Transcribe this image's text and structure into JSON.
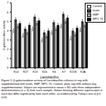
{
  "chart_data": {
    "type": "bar",
    "x_label": "Lactobacillus",
    "y_label": "β-galactosidase activity",
    "caption": "Figure 5: β-galactosidase activity of Lactobacillus cultures in soy milk supplemented with inulin, SMP, WPC 70; Control- plain soy milk without any supplementation. Values are represented in mean ± SD with three independent determinations (n = 3) from each sample. Values bearing different superscripts in each bar differ significantly from each other, as evidenced by Tukey's test at p ≤ 0.05.",
    "categories": [
      "K14",
      "R27",
      "K13",
      "K16",
      "K6",
      "K7",
      "K21K",
      "K2A"
    ],
    "series": [
      {
        "name": "Control",
        "color": "#ffffff",
        "values": [
          4.0,
          3.5,
          4.2,
          3.0,
          3.8,
          4.5,
          3.2,
          4.1
        ],
        "errors": [
          0.2,
          0.2,
          0.2,
          0.2,
          0.2,
          0.2,
          0.2,
          0.2
        ]
      },
      {
        "name": "Inulin",
        "color": "#404040",
        "values": [
          5.2,
          4.2,
          5.5,
          3.8,
          4.9,
          5.8,
          4.0,
          5.0
        ],
        "errors": [
          0.2,
          0.2,
          0.2,
          0.2,
          0.2,
          0.2,
          0.2,
          0.2
        ]
      },
      {
        "name": "SMP",
        "color": "#a6a6a6",
        "values": [
          4.5,
          3.8,
          4.8,
          3.4,
          4.2,
          5.0,
          3.6,
          4.6
        ],
        "errors": [
          0.2,
          0.2,
          0.2,
          0.2,
          0.2,
          0.2,
          0.2,
          0.2
        ]
      },
      {
        "name": "WPC 70",
        "color": "#000000",
        "values": [
          4.8,
          4.6,
          5.1,
          4.0,
          4.6,
          5.4,
          4.3,
          4.9
        ],
        "errors": [
          0.2,
          0.2,
          0.2,
          0.2,
          0.2,
          0.2,
          0.2,
          0.2
        ]
      }
    ],
    "ylim": [
      0,
      7
    ],
    "yticks": [
      0,
      1,
      2,
      3,
      4,
      5,
      6,
      7
    ],
    "legend": "right",
    "grid": false
  }
}
